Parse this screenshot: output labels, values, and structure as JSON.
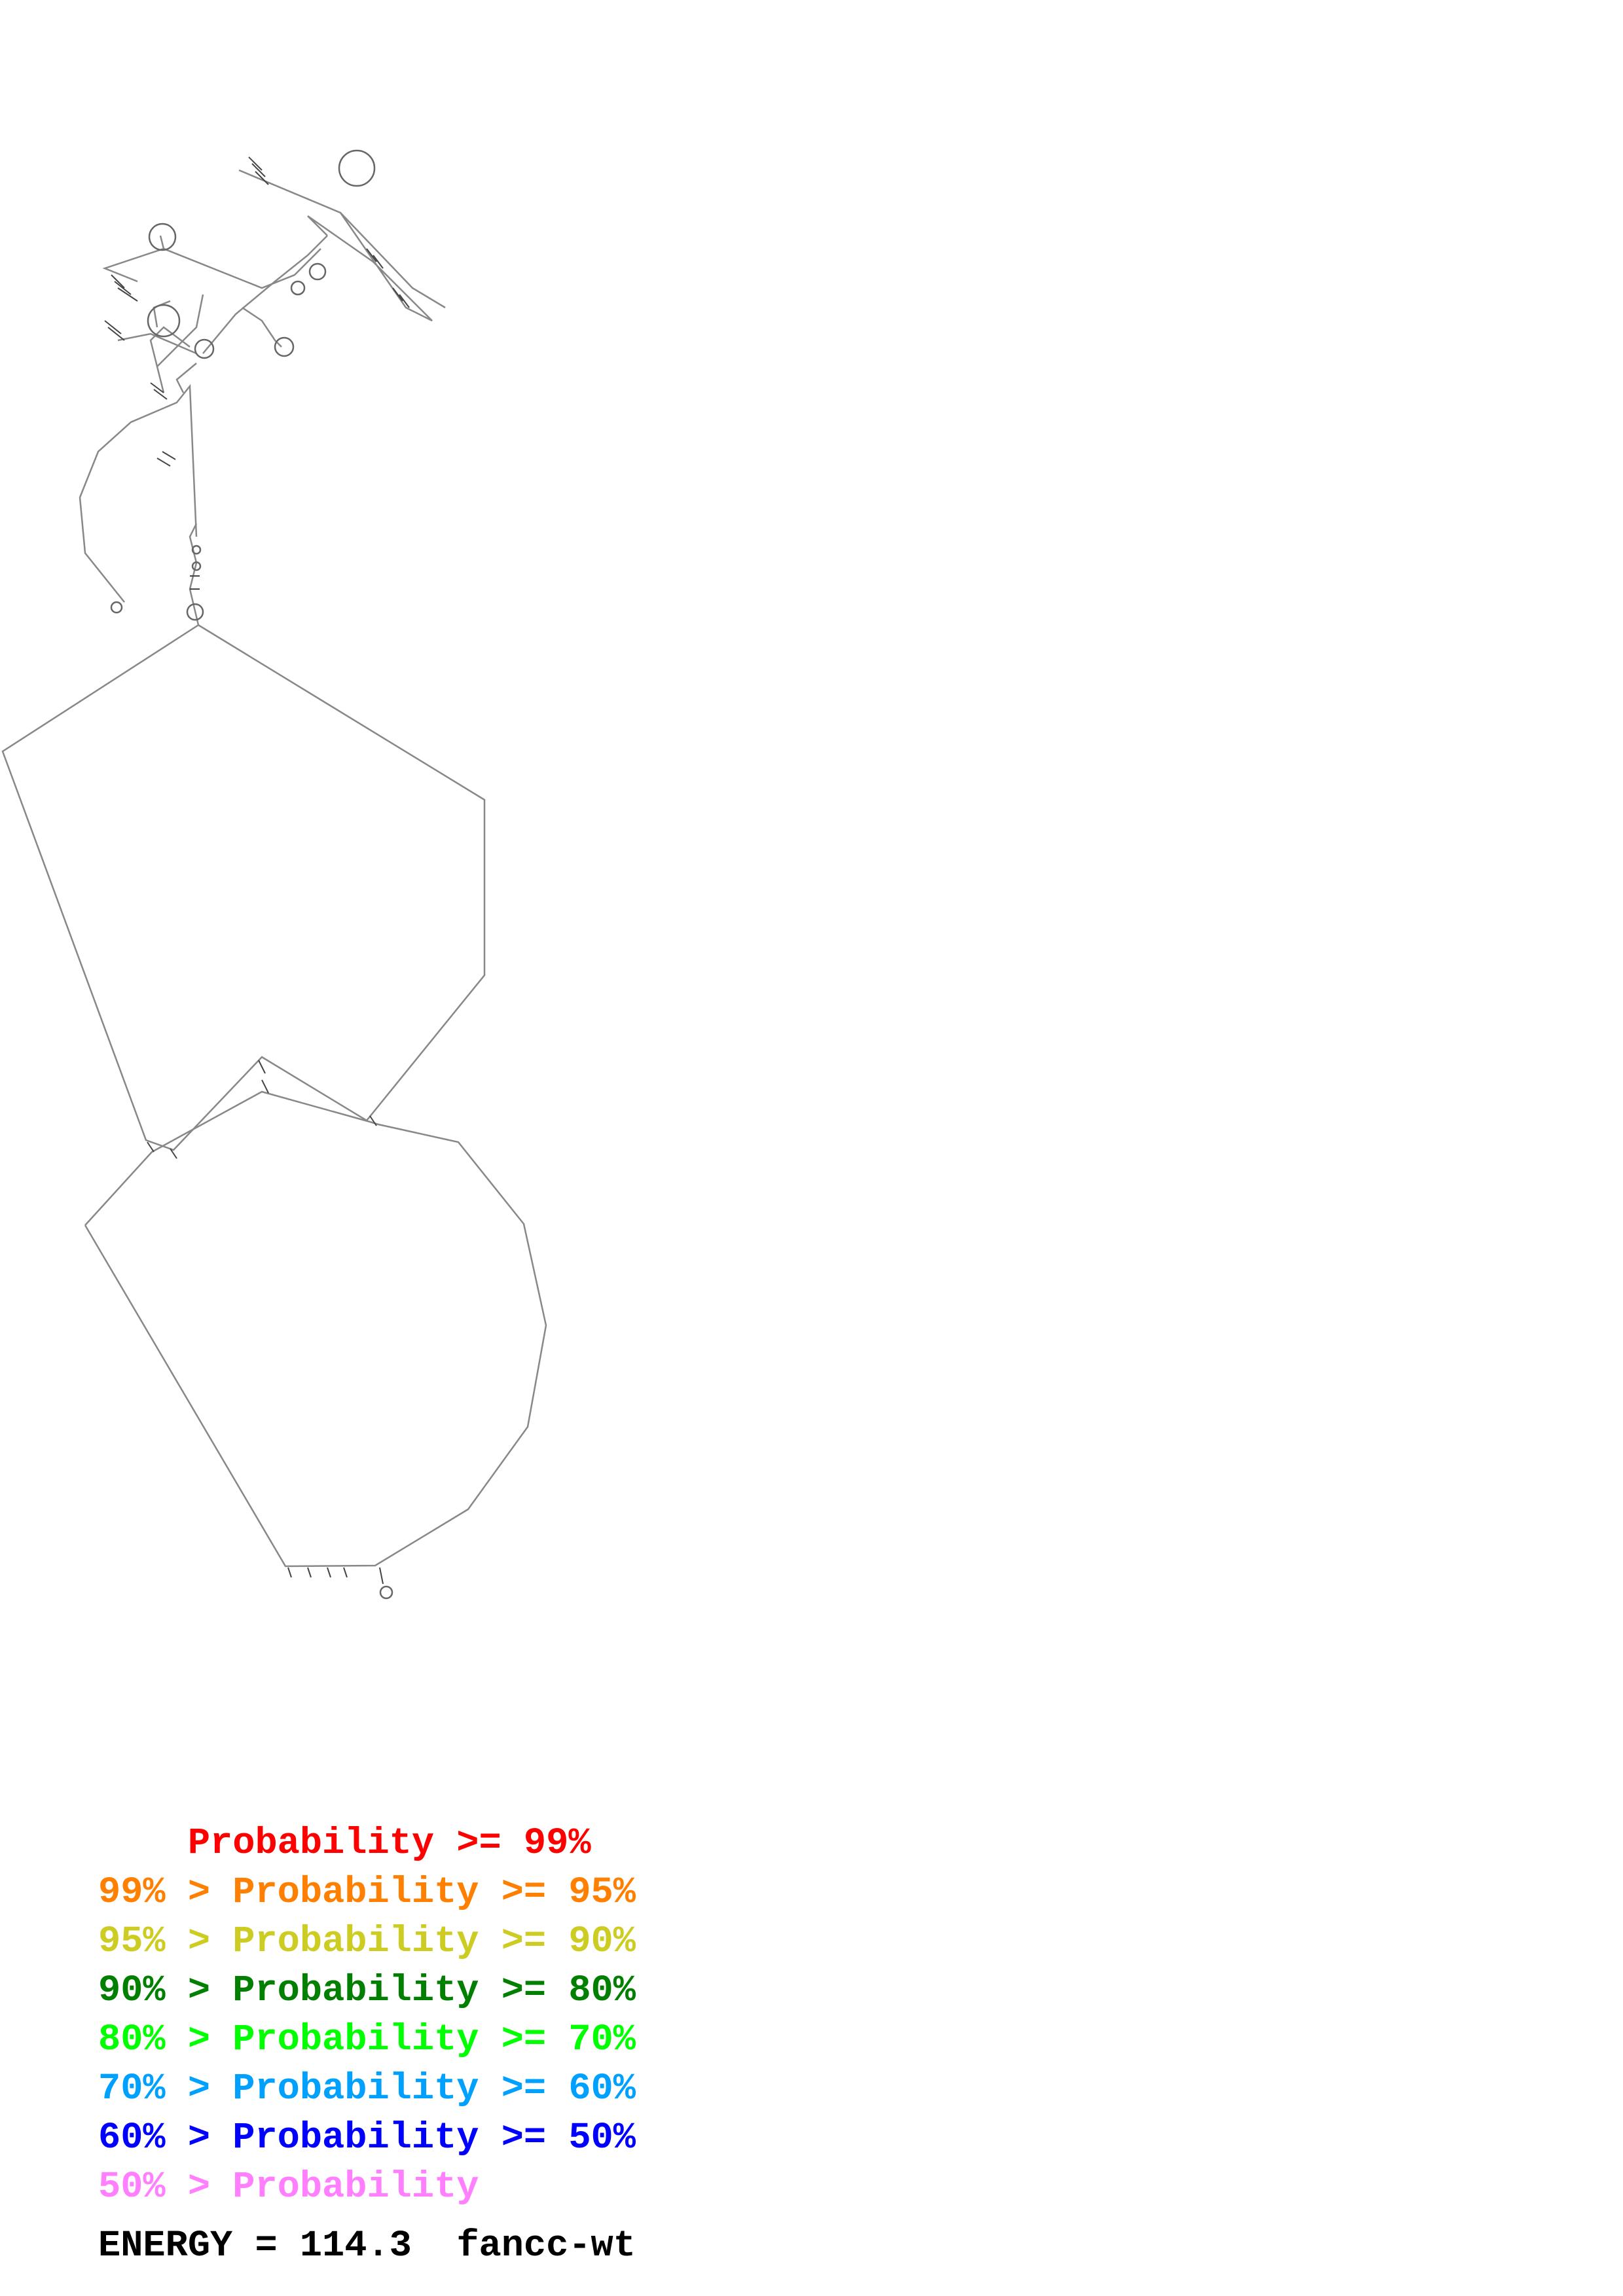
{
  "legend": [
    {
      "prefix": "    ",
      "text": "Probability >= 99%",
      "color": "#ff0000"
    },
    {
      "prefix": "99% > ",
      "text": "Probability >= 95%",
      "color": "#ff7f00"
    },
    {
      "prefix": "95% > ",
      "text": "Probability >= 90%",
      "color": "#cccc22"
    },
    {
      "prefix": "90% > ",
      "text": "Probability >= 80%",
      "color": "#007f00"
    },
    {
      "prefix": "80% > ",
      "text": "Probability >= 70%",
      "color": "#00ff00"
    },
    {
      "prefix": "70% > ",
      "text": "Probability >= 60%",
      "color": "#00a0ff"
    },
    {
      "prefix": "60% > ",
      "text": "Probability >= 50%",
      "color": "#0000ff"
    },
    {
      "prefix": "50% > ",
      "text": "Probability",
      "color": "#ff7fff"
    }
  ],
  "footer": {
    "energy": "ENERGY = 114.3",
    "name": "fancc-wt"
  },
  "structure": {
    "line_color": "#888888"
  }
}
